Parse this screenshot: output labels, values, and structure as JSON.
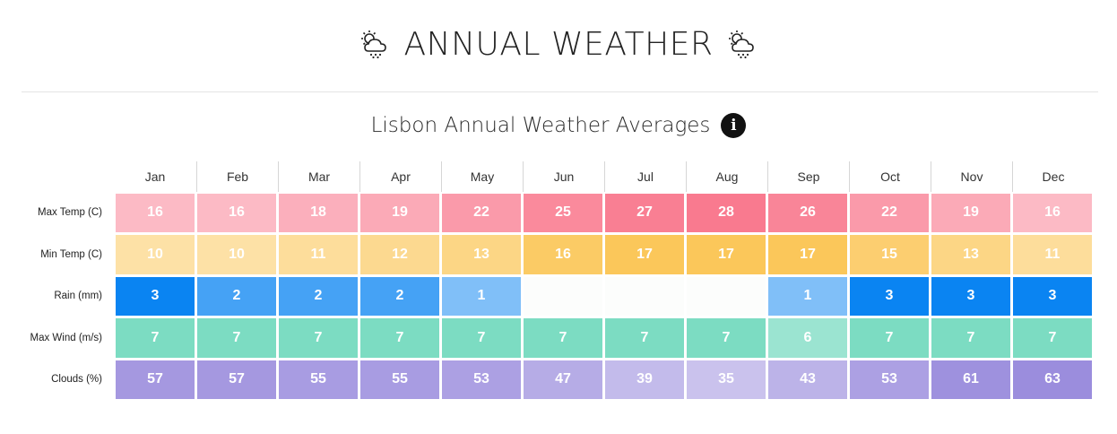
{
  "header": {
    "title": "ANNUAL WEATHER",
    "icon_left": "cloud-sun-rain-icon",
    "icon_right": "cloud-sun-rain-icon"
  },
  "subtitle": {
    "text": "Lisbon Annual Weather Averages",
    "info_icon": "info-icon",
    "info_glyph": "i"
  },
  "colors": {
    "max_temp": "#f97a8f",
    "min_temp": "#fbc75a",
    "rain": "#0a84f2",
    "max_wind": "#7cdcc2",
    "clouds": "#9b8ddd"
  },
  "chart_data": {
    "type": "heatmap",
    "title": "Lisbon Annual Weather Averages",
    "months": [
      "Jan",
      "Feb",
      "Mar",
      "Apr",
      "May",
      "Jun",
      "Jul",
      "Aug",
      "Sep",
      "Oct",
      "Nov",
      "Dec"
    ],
    "rows": [
      {
        "label": "Max Temp (C)",
        "key": "max_temp",
        "values": [
          16,
          16,
          18,
          19,
          22,
          25,
          27,
          28,
          26,
          22,
          19,
          16
        ],
        "range": [
          10,
          28
        ]
      },
      {
        "label": "Min Temp (C)",
        "key": "min_temp",
        "values": [
          10,
          10,
          11,
          12,
          13,
          16,
          17,
          17,
          17,
          15,
          13,
          11
        ],
        "range": [
          6,
          17
        ]
      },
      {
        "label": "Rain (mm)",
        "key": "rain",
        "values": [
          3,
          2,
          2,
          2,
          1,
          null,
          null,
          null,
          1,
          3,
          3,
          3
        ],
        "range": [
          0,
          3
        ]
      },
      {
        "label": "Max Wind (m/s)",
        "key": "max_wind",
        "values": [
          7,
          7,
          7,
          7,
          7,
          7,
          7,
          7,
          6,
          7,
          7,
          7
        ],
        "range": [
          4,
          7
        ]
      },
      {
        "label": "Clouds (%)",
        "key": "clouds",
        "values": [
          57,
          57,
          55,
          55,
          53,
          47,
          39,
          35,
          43,
          53,
          61,
          63
        ],
        "range": [
          20,
          63
        ]
      }
    ]
  }
}
